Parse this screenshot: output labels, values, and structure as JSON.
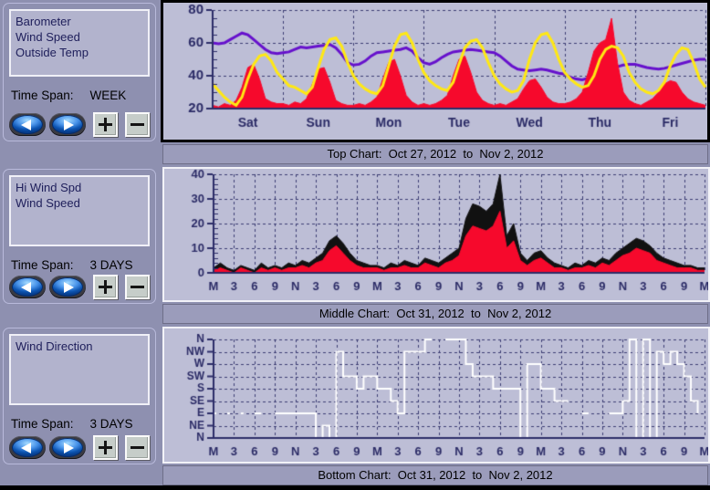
{
  "colors": {
    "page_bg": "#8e90b0",
    "plot_bg": "#bdbed6",
    "grid": "#3d3d73",
    "axis": "#2d2d68",
    "label": "#2b2b66",
    "caption_bg": "#9b9cbb",
    "listbox_bg": "#b2b3cd",
    "barometer": "#6611cc",
    "outside_temp": "#ffe813",
    "wind_speed": "#f6092c",
    "hi_wind": "#111111",
    "wind_direction": "#ffffff"
  },
  "sidebar": {
    "panels": [
      {
        "series_list": [
          "Barometer",
          "Wind Speed",
          "Outside Temp"
        ],
        "time_span_label": "Time Span:",
        "time_span_value": "WEEK"
      },
      {
        "series_list": [
          "Hi Wind Spd",
          "Wind Speed"
        ],
        "time_span_label": "Time Span:",
        "time_span_value": "3 DAYS"
      },
      {
        "series_list": [
          "Wind Direction"
        ],
        "time_span_label": "Time Span:",
        "time_span_value": "3 DAYS"
      }
    ]
  },
  "captions": {
    "top": "Top Chart:  Oct 27, 2012  to  Nov 2, 2012",
    "middle": "Middle Chart:  Oct 31, 2012  to  Nov 2, 2012",
    "bottom": "Bottom Chart:  Oct 31, 2012  to  Nov 2, 2012"
  },
  "chart_data": [
    {
      "type": "line",
      "title": "Top Chart:  Oct 27, 2012  to  Nov 2, 2012",
      "xlim": [
        0,
        168
      ],
      "ylim": [
        20,
        80
      ],
      "grid_x_step": 24,
      "grid_y": [
        40,
        60,
        80
      ],
      "minor_y": [
        25,
        30,
        35,
        45,
        50,
        55,
        65,
        70,
        75
      ],
      "xticks": {
        "start": 12,
        "step": 24,
        "labels": [
          "Sat",
          "Sun",
          "Mon",
          "Tue",
          "Wed",
          "Thu",
          "Fri"
        ]
      },
      "yticks": {
        "start": 20,
        "step": 20,
        "labels": [
          "20",
          "40",
          "60",
          "80"
        ]
      },
      "series": [
        {
          "name": "Barometer",
          "color": "#6611cc",
          "kind": "line",
          "width": 3,
          "x0": 0,
          "dx": 2,
          "values": [
            60,
            59.5,
            60,
            62,
            64,
            66,
            65,
            62,
            59,
            56,
            54,
            53.5,
            54,
            54.5,
            56,
            57.5,
            57,
            57.5,
            58,
            58.5,
            59,
            57,
            53,
            48,
            46.5,
            47,
            49,
            52,
            54,
            54.5,
            55,
            55.5,
            56,
            57,
            55,
            51,
            48,
            47,
            48.5,
            51,
            53,
            54.5,
            55,
            55.5,
            56,
            55.5,
            55,
            54.5,
            54,
            52,
            49,
            46,
            44,
            43.5,
            43,
            43.5,
            44,
            43.5,
            42.5,
            41.5,
            41,
            39,
            38,
            37.5,
            38.5,
            40,
            42,
            43.5,
            44.5,
            45.5,
            46.5,
            47,
            47,
            46,
            45,
            44.5,
            44,
            44.5,
            45.5,
            46.5,
            47.5,
            48.5,
            49.5,
            50,
            50
          ]
        },
        {
          "name": "Wind Speed",
          "color": "#f6092c",
          "kind": "fill",
          "base": 20,
          "x0": 0,
          "dx": 2,
          "values": [
            22,
            21,
            23,
            22,
            25,
            33,
            45,
            47,
            38,
            26,
            24,
            23,
            23,
            22,
            24,
            23,
            26,
            35,
            44,
            45,
            36,
            25,
            23,
            22,
            22,
            23,
            22,
            24,
            27,
            38,
            48,
            50,
            40,
            28,
            24,
            22,
            23,
            22,
            23,
            25,
            28,
            40,
            50,
            52,
            42,
            30,
            25,
            23,
            22,
            23,
            22,
            24,
            26,
            32,
            37,
            38,
            33,
            27,
            24,
            23,
            23,
            24,
            26,
            30,
            42,
            55,
            60,
            62,
            75,
            48,
            30,
            25,
            23,
            22,
            24,
            26,
            30,
            35,
            37,
            36,
            30,
            26,
            24,
            23,
            22
          ]
        },
        {
          "name": "Outside Temp",
          "color": "#ffe813",
          "kind": "line",
          "width": 3,
          "x0": 0,
          "dx": 2,
          "values": [
            35,
            31,
            27,
            24,
            22,
            27,
            38,
            47,
            52,
            53,
            49,
            42,
            38,
            34,
            33,
            31,
            29,
            33,
            45,
            56,
            62,
            63,
            58,
            48,
            40,
            35,
            32,
            30,
            29,
            34,
            46,
            58,
            65,
            66,
            60,
            50,
            42,
            37,
            34,
            32,
            31,
            36,
            47,
            57,
            61,
            62,
            57,
            48,
            40,
            35,
            32,
            30,
            31,
            37,
            50,
            60,
            65,
            66,
            60,
            50,
            42,
            38,
            35,
            33,
            34,
            40,
            50,
            56,
            58,
            57,
            52,
            42,
            36,
            32,
            30,
            29,
            31,
            36,
            46,
            53,
            57,
            56,
            48,
            38,
            33
          ]
        }
      ]
    },
    {
      "type": "area",
      "title": "Middle Chart:  Oct 31, 2012  to  Nov 2, 2012",
      "xlim": [
        0,
        72
      ],
      "ylim": [
        0,
        40
      ],
      "grid_x_step": 3,
      "grid_y": [
        10,
        20,
        30,
        40
      ],
      "minor_y": [
        2,
        4,
        6,
        8,
        12,
        14,
        16,
        18,
        22,
        24,
        26,
        28,
        32,
        34,
        36,
        38
      ],
      "xticks": {
        "start": 0,
        "step": 3,
        "labels": [
          "M",
          "3",
          "6",
          "9",
          "N",
          "3",
          "6",
          "9",
          "M",
          "3",
          "6",
          "9",
          "N",
          "3",
          "6",
          "9",
          "M",
          "3",
          "6",
          "9",
          "N",
          "3",
          "6",
          "9",
          "M"
        ]
      },
      "yticks": {
        "start": 0,
        "step": 10,
        "labels": [
          "0",
          "10",
          "20",
          "30",
          "40"
        ]
      },
      "series": [
        {
          "name": "Hi Wind Spd",
          "color": "#111111",
          "kind": "fill",
          "base": 0,
          "x0": 0,
          "dx": 1,
          "values": [
            2,
            4,
            2,
            1,
            3,
            2,
            1,
            4,
            2,
            3,
            2,
            4,
            3,
            5,
            4,
            6,
            8,
            13,
            15,
            12,
            8,
            5,
            4,
            3,
            3,
            2,
            4,
            3,
            5,
            4,
            3,
            6,
            5,
            4,
            6,
            8,
            10,
            22,
            28,
            27,
            25,
            28,
            40,
            15,
            20,
            8,
            5,
            8,
            9,
            6,
            4,
            3,
            2,
            4,
            3,
            5,
            4,
            6,
            5,
            8,
            10,
            12,
            14,
            13,
            11,
            8,
            6,
            5,
            4,
            3,
            3,
            2,
            2
          ]
        },
        {
          "name": "Wind Speed",
          "color": "#f6092c",
          "kind": "fill",
          "base": 0,
          "x0": 0,
          "dx": 1,
          "values": [
            1,
            2,
            1,
            0,
            2,
            1,
            0,
            2,
            1,
            2,
            1,
            2,
            2,
            3,
            2,
            4,
            5,
            9,
            11,
            8,
            5,
            3,
            2,
            2,
            2,
            1,
            2,
            2,
            3,
            2,
            2,
            4,
            3,
            2,
            4,
            5,
            7,
            15,
            19,
            18,
            17,
            19,
            25,
            10,
            13,
            5,
            3,
            5,
            6,
            4,
            2,
            2,
            1,
            2,
            2,
            3,
            2,
            4,
            3,
            5,
            7,
            8,
            10,
            9,
            8,
            5,
            4,
            3,
            2,
            2,
            2,
            1,
            1
          ]
        }
      ]
    },
    {
      "type": "line",
      "title": "Bottom Chart:  Oct 31, 2012  to  Nov 2, 2012",
      "xlim": [
        0,
        72
      ],
      "ylim": [
        0,
        8
      ],
      "grid_x_step": 3,
      "grid_y": [
        1,
        2,
        3,
        4,
        5,
        6,
        7,
        8
      ],
      "minor_y": [],
      "xticks": {
        "start": 0,
        "step": 3,
        "labels": [
          "M",
          "3",
          "6",
          "9",
          "N",
          "3",
          "6",
          "9",
          "M",
          "3",
          "6",
          "9",
          "N",
          "3",
          "6",
          "9",
          "M",
          "3",
          "6",
          "9",
          "N",
          "3",
          "6",
          "9",
          "M"
        ]
      },
      "yticks": {
        "start": 0,
        "step": 1,
        "labels": [
          "N",
          "NE",
          "E",
          "SE",
          "S",
          "SW",
          "W",
          "NW",
          "N"
        ]
      },
      "series": [
        {
          "name": "Wind Direction",
          "color": "#ffffff",
          "kind": "step",
          "width": 2,
          "x0": 0,
          "dx": 1,
          "values": [
            2,
            null,
            2,
            null,
            2,
            null,
            2,
            2,
            null,
            2,
            2,
            2,
            2,
            2,
            2,
            0,
            1,
            0,
            7,
            5,
            5,
            4,
            5,
            5,
            4,
            4,
            3,
            2,
            7,
            7,
            7,
            8,
            8,
            null,
            8,
            8,
            8,
            6,
            5,
            5,
            5,
            4,
            4,
            4,
            4,
            0,
            6,
            6,
            4,
            4,
            3,
            3,
            3,
            null,
            2,
            2,
            null,
            null,
            2,
            2,
            3,
            8,
            0,
            8,
            0,
            7,
            6,
            7,
            6,
            5,
            3,
            2,
            null
          ]
        }
      ]
    }
  ]
}
